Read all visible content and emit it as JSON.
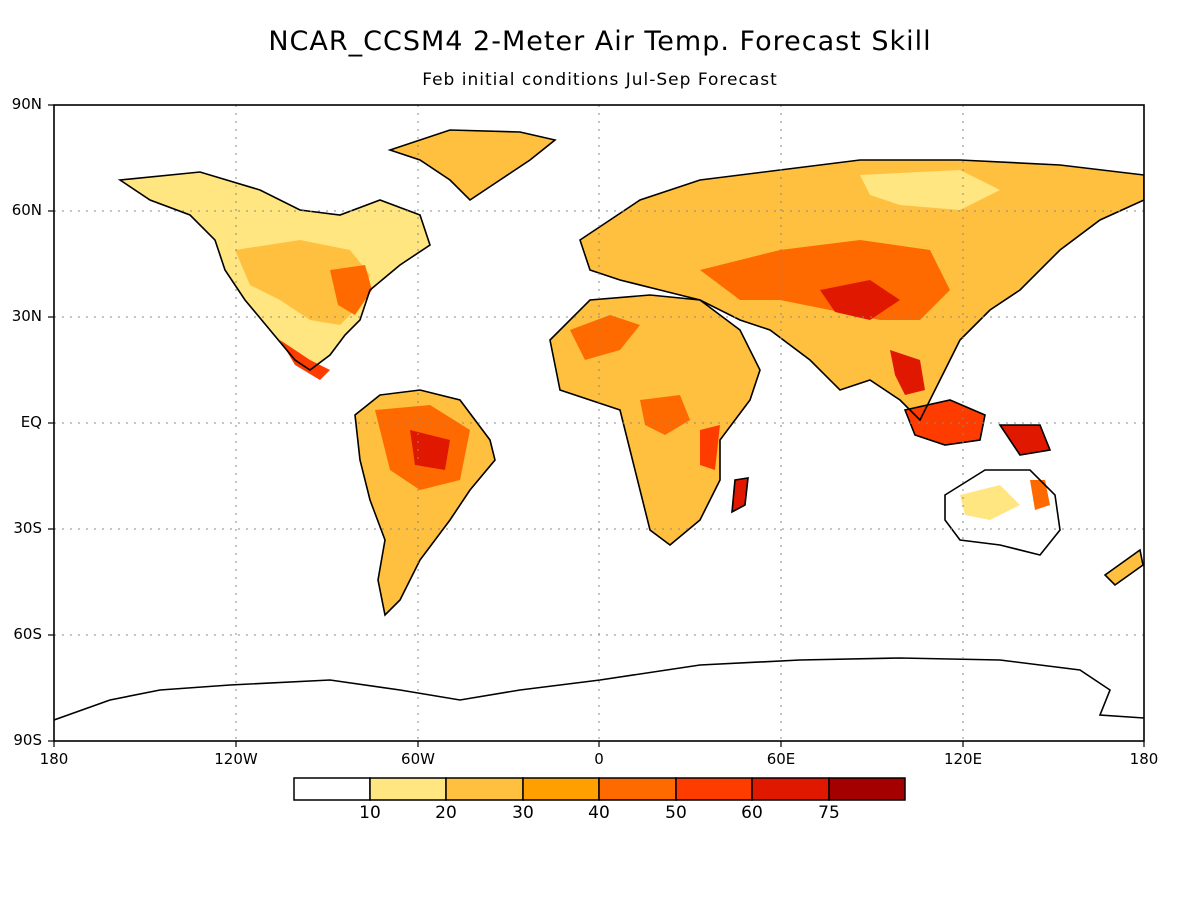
{
  "title": "NCAR_CCSM4 2-Meter Air Temp. Forecast Skill",
  "subtitle": "Feb initial conditions  Jul-Sep Forecast",
  "lat_labels": [
    "90N",
    "60N",
    "30N",
    "EQ",
    "30S",
    "60S",
    "90S"
  ],
  "lon_labels": [
    "180",
    "120W",
    "60W",
    "0",
    "60E",
    "120E",
    "180"
  ],
  "colorbar": {
    "labels": [
      "10",
      "20",
      "30",
      "40",
      "50",
      "60",
      "75"
    ],
    "colors": [
      "#ffffff",
      "#ffe680",
      "#ffc040",
      "#ffa000",
      "#ff6a00",
      "#ff3c00",
      "#e01800",
      "#a50000"
    ]
  },
  "colors": {
    "land_outline": "#000000",
    "grid": "#888888"
  }
}
